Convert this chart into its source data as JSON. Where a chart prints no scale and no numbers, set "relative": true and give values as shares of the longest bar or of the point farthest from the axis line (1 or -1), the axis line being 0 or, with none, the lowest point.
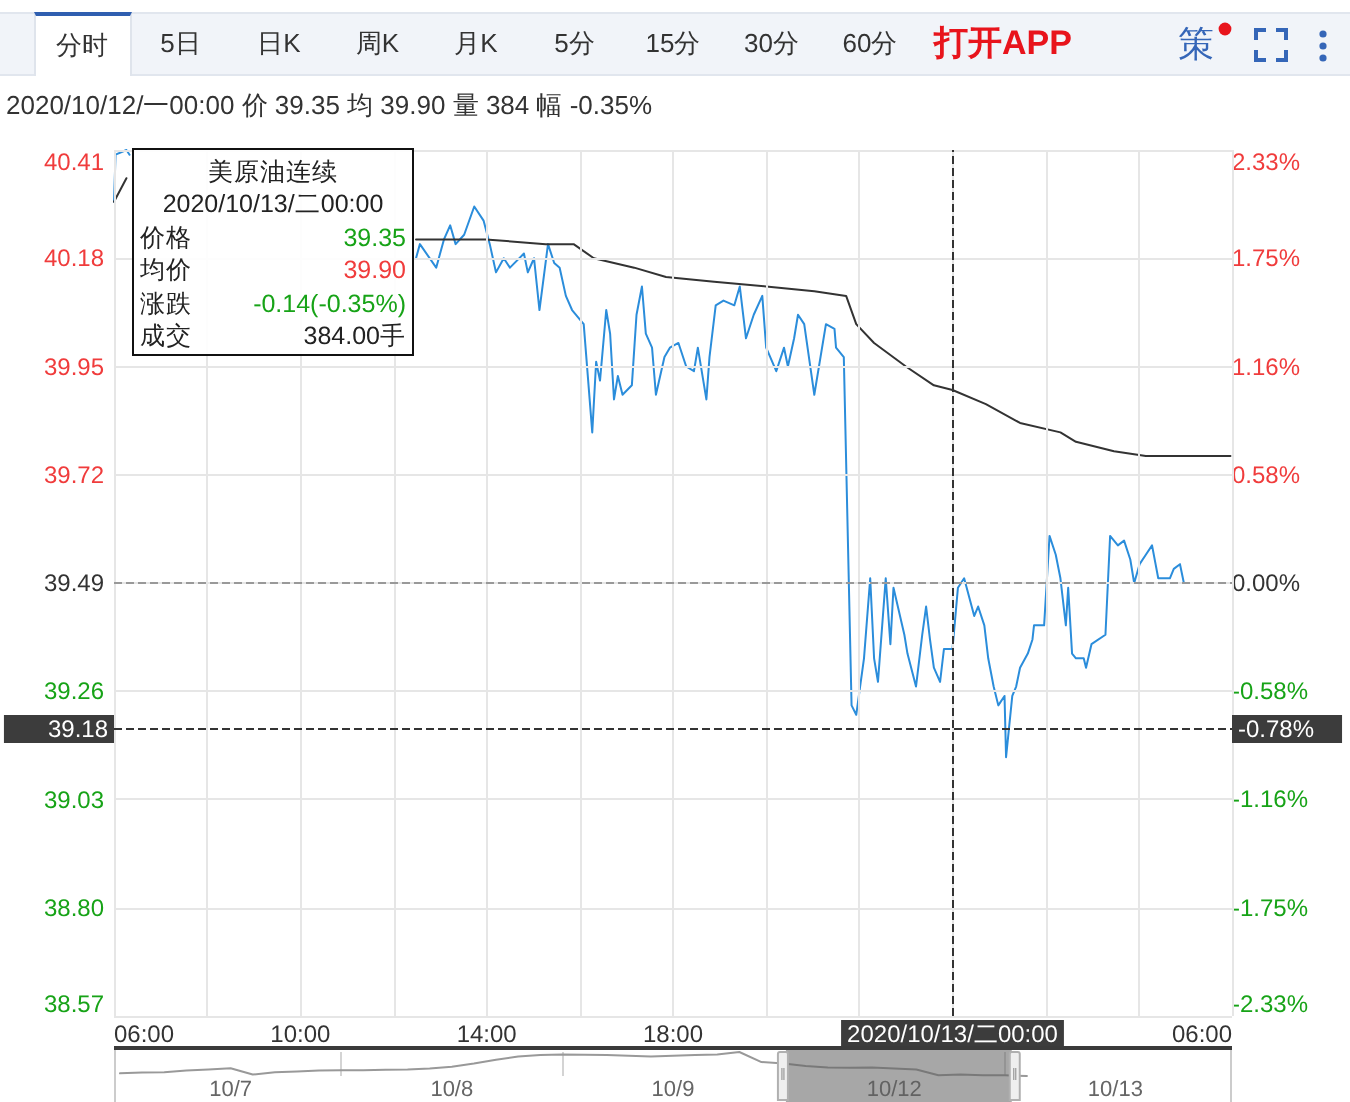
{
  "chart_data": [
    {
      "type": "line",
      "subtitle": "2020/10/12/一00:00 价 39.35 均 39.90 量 384 幅 -0.35%",
      "annotations": [
        "分时",
        "5日",
        "日K",
        "周K",
        "月K",
        "5分",
        "15分",
        "30分",
        "60分",
        "打开APP",
        "策",
        "美原油连续",
        "2020/10/13/二00:00",
        "价格",
        "39.35",
        "均价",
        "39.90",
        "涨跌",
        "-0.14(-0.35%)",
        "成交",
        "384.00手",
        "-0.78%"
      ],
      "series": [
        {
          "color": "#2b8ddb",
          "x": [
            "2020-10-12T06:00",
            "2020-10-12T06:02",
            "2020-10-12T06:16",
            "2020-10-12T06:20",
            "2020-10-12T09:00",
            "2020-10-12T12:29",
            "2020-10-12T12:34",
            "2020-10-12T12:55",
            "2020-10-12T13:05",
            "2020-10-12T13:13",
            "2020-10-12T13:20",
            "2020-10-12T13:31",
            "2020-10-12T13:44",
            "2020-10-12T13:56",
            "2020-10-12T14:04",
            "2020-10-12T14:12",
            "2020-10-12T14:22",
            "2020-10-12T14:30",
            "2020-10-12T14:48",
            "2020-10-12T14:53",
            "2020-10-12T15:01",
            "2020-10-12T15:08",
            "2020-10-12T15:19",
            "2020-10-12T15:27",
            "2020-10-12T15:34",
            "2020-10-12T15:42",
            "2020-10-12T15:50",
            "2020-10-12T16:05",
            "2020-10-12T16:16",
            "2020-10-12T16:21",
            "2020-10-12T16:26",
            "2020-10-12T16:34",
            "2020-10-12T16:39",
            "2020-10-12T16:44",
            "2020-10-12T16:49",
            "2020-10-12T16:55",
            "2020-10-12T17:07",
            "2020-10-12T17:13",
            "2020-10-12T17:20",
            "2020-10-12T17:25",
            "2020-10-12T17:33",
            "2020-10-12T17:38",
            "2020-10-12T17:49",
            "2020-10-12T17:56",
            "2020-10-12T18:07",
            "2020-10-12T18:17",
            "2020-10-12T18:27",
            "2020-10-12T18:32",
            "2020-10-12T18:43",
            "2020-10-12T18:47",
            "2020-10-12T18:55",
            "2020-10-12T19:05",
            "2020-10-12T19:19",
            "2020-10-12T19:26",
            "2020-10-12T19:34",
            "2020-10-12T19:44",
            "2020-10-12T19:55",
            "2020-10-12T20:00",
            "2020-10-12T20:13",
            "2020-10-12T20:23",
            "2020-10-12T20:28",
            "2020-10-12T20:36",
            "2020-10-12T20:41",
            "2020-10-12T20:49",
            "2020-10-12T21:02",
            "2020-10-12T21:17",
            "2020-10-12T21:28",
            "2020-10-12T21:30",
            "2020-10-12T21:40",
            "2020-10-12T21:50",
            "2020-10-12T21:56",
            "2020-10-12T22:06",
            "2020-10-12T22:14",
            "2020-10-12T22:19",
            "2020-10-12T22:24",
            "2020-10-12T22:34",
            "2020-10-12T22:40",
            "2020-10-12T22:44",
            "2020-10-12T22:58",
            "2020-10-12T23:02",
            "2020-10-12T23:13",
            "2020-10-12T23:21",
            "2020-10-12T23:26",
            "2020-10-12T23:31",
            "2020-10-12T23:36",
            "2020-10-12T23:44",
            "2020-10-12T23:49",
            "2020-10-13T00:00",
            "2020-10-13T00:07",
            "2020-10-13T00:15",
            "2020-10-13T00:28",
            "2020-10-13T00:33",
            "2020-10-13T00:41",
            "2020-10-13T00:46",
            "2020-10-13T00:53",
            "2020-10-13T00:59",
            "2020-10-13T01:07",
            "2020-10-13T01:09",
            "2020-10-13T01:17",
            "2020-10-13T01:22",
            "2020-10-13T01:27",
            "2020-10-13T01:37",
            "2020-10-13T01:43",
            "2020-10-13T01:45",
            "2020-10-13T01:58",
            "2020-10-13T02:05",
            "2020-10-13T02:13",
            "2020-10-13T02:19",
            "2020-10-13T02:26",
            "2020-10-13T02:29",
            "2020-10-13T02:34",
            "2020-10-13T02:39",
            "2020-10-13T02:49",
            "2020-10-13T02:52",
            "2020-10-13T02:59",
            "2020-10-13T03:17",
            "2020-10-13T03:23",
            "2020-10-13T03:33",
            "2020-10-13T03:41",
            "2020-10-13T03:49",
            "2020-10-13T03:54",
            "2020-10-13T04:01",
            "2020-10-13T04:09",
            "2020-10-13T04:17",
            "2020-10-13T04:25",
            "2020-10-13T04:40",
            "2020-10-13T04:45",
            "2020-10-13T04:53",
            "2020-10-13T04:58",
            "2020-10-13T05:58"
          ],
          "values": [
            40.3,
            40.4,
            40.41,
            40.4,
            null,
            40.18,
            40.21,
            40.16,
            40.22,
            40.25,
            40.21,
            40.23,
            40.29,
            40.26,
            40.21,
            40.15,
            40.18,
            40.16,
            40.19,
            40.15,
            40.18,
            40.07,
            40.21,
            40.17,
            40.16,
            40.1,
            40.07,
            40.04,
            39.81,
            39.96,
            39.92,
            40.07,
            40.02,
            39.88,
            39.93,
            39.89,
            39.91,
            40.06,
            40.12,
            40.02,
            39.99,
            39.89,
            39.97,
            39.99,
            40.0,
            39.95,
            39.94,
            39.99,
            39.88,
            39.97,
            40.08,
            40.09,
            40.08,
            40.12,
            40.01,
            40.06,
            40.1,
            39.99,
            39.94,
            39.99,
            39.95,
            40.01,
            40.06,
            40.04,
            39.89,
            40.04,
            40.03,
            39.99,
            39.97,
            39.23,
            39.21,
            39.33,
            39.5,
            39.33,
            39.28,
            39.5,
            39.36,
            39.48,
            39.38,
            39.34,
            39.27,
            39.38,
            39.44,
            39.37,
            39.31,
            39.28,
            39.35,
            39.35,
            39.48,
            39.5,
            39.42,
            39.44,
            39.4,
            39.33,
            39.27,
            39.23,
            39.25,
            39.12,
            39.25,
            39.27,
            39.31,
            39.34,
            39.37,
            39.4,
            39.4,
            39.59,
            39.55,
            39.5,
            39.4,
            39.48,
            39.34,
            39.33,
            39.33,
            39.31,
            39.36,
            39.38,
            39.59,
            39.57,
            39.58,
            39.54,
            39.49,
            39.53,
            39.55,
            39.57,
            39.5,
            39.5,
            39.52,
            39.53,
            39.49,
            39.49
          ]
        },
        {
          "color": "#333333",
          "x": [
            "2020-10-12T06:00",
            "2020-10-12T06:16",
            "2020-10-12T09:00",
            "2020-10-12T12:29",
            "2020-10-12T13:59",
            "2020-10-12T15:16",
            "2020-10-12T15:52",
            "2020-10-12T16:18",
            "2020-10-12T17:10",
            "2020-10-12T17:51",
            "2020-10-12T18:53",
            "2020-10-12T20:00",
            "2020-10-12T21:02",
            "2020-10-12T21:43",
            "2020-10-12T21:56",
            "2020-10-12T22:19",
            "2020-10-12T23:00",
            "2020-10-12T23:36",
            "2020-10-13T00:00",
            "2020-10-13T00:43",
            "2020-10-13T01:27",
            "2020-10-13T02:19",
            "2020-10-13T02:39",
            "2020-10-13T03:28",
            "2020-10-13T04:09",
            "2020-10-13T05:01",
            "2020-10-13T05:58"
          ],
          "values": [
            40.3,
            40.35,
            null,
            40.22,
            40.22,
            40.21,
            40.21,
            40.18,
            40.16,
            40.14,
            40.13,
            40.12,
            40.11,
            40.1,
            40.04,
            40.0,
            39.95,
            39.91,
            39.9,
            39.87,
            39.83,
            39.81,
            39.79,
            39.77,
            39.76,
            39.76,
            39.76
          ]
        }
      ],
      "xlim": [
        "2020-10-12T06:00",
        "2020-10-13T06:00"
      ],
      "xticks": [
        {
          "value": "2020-10-12T06:00",
          "label": "06:00"
        },
        {
          "value": "2020-10-12T08:00",
          "label": null
        },
        {
          "value": "2020-10-12T10:00",
          "label": "10:00"
        },
        {
          "value": "2020-10-12T12:00",
          "label": null
        },
        {
          "value": "2020-10-12T14:00",
          "label": "14:00"
        },
        {
          "value": "2020-10-12T16:00",
          "label": null
        },
        {
          "value": "2020-10-12T18:00",
          "label": "18:00"
        },
        {
          "value": "2020-10-12T20:00",
          "label": null
        },
        {
          "value": "2020-10-12T22:00",
          "label": null
        },
        {
          "value": "2020-10-13T00:00",
          "label": null
        },
        {
          "value": "2020-10-13T02:00",
          "label": null
        },
        {
          "value": "2020-10-13T04:00",
          "label": null
        },
        {
          "value": "2020-10-13T06:00",
          "label": "06:00"
        }
      ],
      "ylim": [
        38.57,
        40.41
      ],
      "yticks": [
        38.57,
        {
          "value": 38.8,
          "label": "38.80"
        },
        39.03,
        39.26,
        39.49,
        39.72,
        39.95,
        40.18,
        40.41
      ],
      "y2lim": [
        -2.33,
        2.33
      ],
      "y2ticks": [
        {
          "value": -2.33,
          "label": "-2.33%"
        },
        {
          "value": -1.75,
          "label": "-1.75%"
        },
        {
          "value": -1.16,
          "label": "-1.16%"
        },
        {
          "value": -0.58,
          "label": "-0.58%"
        },
        {
          "value": 0,
          "label": "0.00%"
        },
        {
          "value": 0.58,
          "label": "0.58%"
        },
        {
          "value": 1.16,
          "label": "1.16%"
        },
        {
          "value": 1.75,
          "label": "1.75%"
        },
        {
          "value": 2.33,
          "label": "2.33%"
        }
      ],
      "ref_lines": [
        {
          "axis": "y",
          "value": 39.49,
          "color": "#999999",
          "line_style": "dashed"
        },
        {
          "axis": "y",
          "value": 39.18,
          "label": "39.18",
          "color": "#333333",
          "line_style": "dashed"
        },
        {
          "axis": "x",
          "value": "2020-10-13T00:00",
          "label": "2020/10/13/二00:00",
          "color": "#333333",
          "line_style": "dashed"
        }
      ],
      "grid": true,
      "marker": "none",
      "line_style": "solid"
    },
    {
      "type": "line",
      "relative": true,
      "categories": [
        null,
        null,
        null,
        null,
        null,
        "10/7",
        null,
        null,
        null,
        null,
        null,
        null,
        null,
        null,
        null,
        "10/8",
        null,
        null,
        null,
        null,
        null,
        null,
        null,
        null,
        null,
        "10/9",
        null,
        null,
        null,
        null,
        null,
        null,
        null,
        null,
        null,
        "10/12",
        null,
        null,
        null,
        null,
        null,
        null,
        null,
        null,
        null,
        "10/13",
        null,
        null,
        null,
        null,
        null
      ],
      "values": [
        0.11,
        0.15,
        0.16,
        0.23,
        0.27,
        0.32,
        0.06,
        0.16,
        0.19,
        0.23,
        0.24,
        0.24,
        0.26,
        0.27,
        0.31,
        0.39,
        0.52,
        0.68,
        0.81,
        0.87,
        0.9,
        0.89,
        0.87,
        0.84,
        0.81,
        0.84,
        0.87,
        0.9,
        1,
        0.58,
        0.52,
        0.42,
        0.35,
        0.34,
        0.35,
        0.31,
        0.27,
        0.03,
        0.06,
        0.03,
        0.03,
        0,
        null,
        null,
        null,
        null,
        null,
        null,
        null,
        null,
        null
      ],
      "color": "#999999",
      "marker": "none",
      "line_style": "solid",
      "grid": "x"
    }
  ]
}
